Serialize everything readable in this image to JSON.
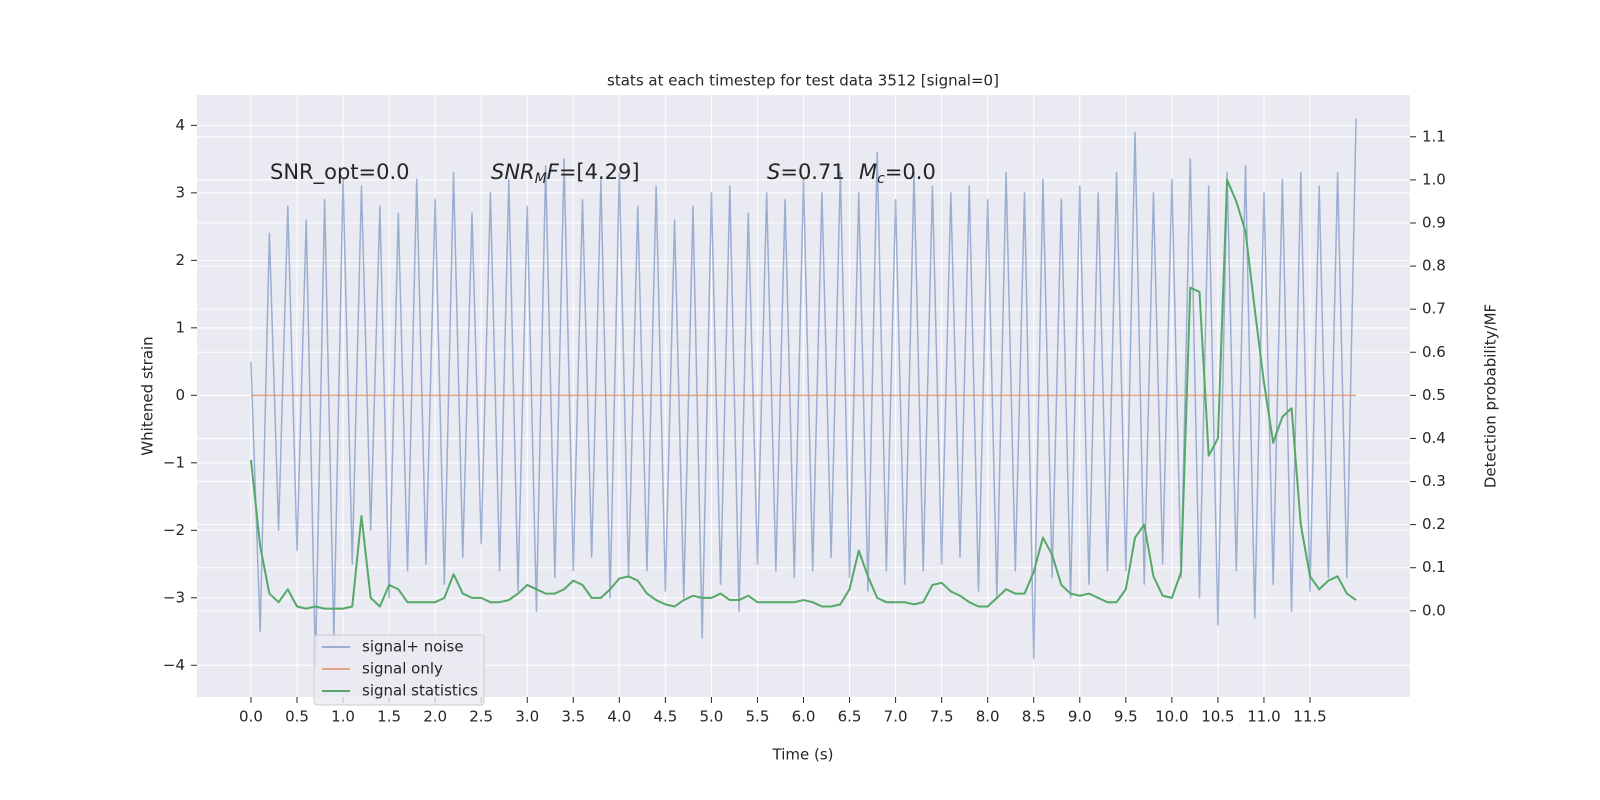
{
  "chart_data": {
    "type": "line",
    "title": "stats at each timestep for test data 3512 [signal=0]",
    "xlabel": "Time (s)",
    "ylabel": "Whitened strain",
    "y2label": "Detection probability/MF",
    "grid": true,
    "legend": "lower left",
    "xlim": [
      -0.586,
      12.586
    ],
    "ylim": [
      -4.47,
      4.45
    ],
    "y2lim": [
      -0.2,
      1.197
    ],
    "xticks": [
      {
        "value": 0,
        "label": "0.0"
      },
      {
        "value": 0.5,
        "label": "0.5"
      },
      {
        "value": 1,
        "label": "1.0"
      },
      {
        "value": 1.5,
        "label": "1.5"
      },
      {
        "value": 2,
        "label": "2.0"
      },
      {
        "value": 2.5,
        "label": "2.5"
      },
      {
        "value": 3,
        "label": "3.0"
      },
      {
        "value": 3.5,
        "label": "3.5"
      },
      {
        "value": 4,
        "label": "4.0"
      },
      {
        "value": 4.5,
        "label": "4.5"
      },
      {
        "value": 5,
        "label": "5.0"
      },
      {
        "value": 5.5,
        "label": "5.5"
      },
      {
        "value": 6,
        "label": "6.0"
      },
      {
        "value": 6.5,
        "label": "6.5"
      },
      {
        "value": 7,
        "label": "7.0"
      },
      {
        "value": 7.5,
        "label": "7.5"
      },
      {
        "value": 8,
        "label": "8.0"
      },
      {
        "value": 8.5,
        "label": "8.5"
      },
      {
        "value": 9,
        "label": "9.0"
      },
      {
        "value": 9.5,
        "label": "9.5"
      },
      {
        "value": 10,
        "label": "10.0"
      },
      {
        "value": 10.5,
        "label": "10.5"
      },
      {
        "value": 11,
        "label": "11.0"
      },
      {
        "value": 11.5,
        "label": "11.5"
      }
    ],
    "yticks": [
      {
        "value": -4,
        "label": "−4"
      },
      {
        "value": -3,
        "label": "−3"
      },
      {
        "value": -2,
        "label": "−2"
      },
      {
        "value": -1,
        "label": "−1"
      },
      0,
      1,
      2,
      3,
      4
    ],
    "y2ticks": [
      {
        "value": 0,
        "label": "0.0"
      },
      {
        "value": 0.1,
        "label": "0.1"
      },
      {
        "value": 0.2,
        "label": "0.2"
      },
      {
        "value": 0.3,
        "label": "0.3"
      },
      {
        "value": 0.4,
        "label": "0.4"
      },
      {
        "value": 0.5,
        "label": "0.5"
      },
      {
        "value": 0.6,
        "label": "0.6"
      },
      {
        "value": 0.7,
        "label": "0.7"
      },
      {
        "value": 0.8,
        "label": "0.8"
      },
      {
        "value": 0.9,
        "label": "0.9"
      },
      {
        "value": 1,
        "label": "1.0"
      },
      {
        "value": 1.1,
        "label": "1.1"
      }
    ],
    "x": [
      0,
      0.1,
      0.2,
      0.3,
      0.4,
      0.5,
      0.6,
      0.7,
      0.8,
      0.9,
      1,
      1.1,
      1.2,
      1.3,
      1.4,
      1.5,
      1.6,
      1.7,
      1.8,
      1.9,
      2,
      2.1,
      2.2,
      2.3,
      2.4,
      2.5,
      2.6,
      2.7,
      2.8,
      2.9,
      3,
      3.1,
      3.2,
      3.3,
      3.4,
      3.5,
      3.6,
      3.7,
      3.8,
      3.9,
      4,
      4.1,
      4.2,
      4.3,
      4.4,
      4.5,
      4.6,
      4.7,
      4.8,
      4.9,
      5,
      5.1,
      5.2,
      5.3,
      5.4,
      5.5,
      5.6,
      5.7,
      5.8,
      5.9,
      6,
      6.1,
      6.2,
      6.3,
      6.4,
      6.5,
      6.6,
      6.7,
      6.8,
      6.9,
      7,
      7.1,
      7.2,
      7.3,
      7.4,
      7.5,
      7.6,
      7.7,
      7.8,
      7.9,
      8,
      8.1,
      8.2,
      8.3,
      8.4,
      8.5,
      8.6,
      8.7,
      8.8,
      8.9,
      9,
      9.1,
      9.2,
      9.3,
      9.4,
      9.5,
      9.6,
      9.7,
      9.8,
      9.9,
      10,
      10.1,
      10.2,
      10.3,
      10.4,
      10.5,
      10.6,
      10.7,
      10.8,
      10.9,
      11,
      11.1,
      11.2,
      11.3,
      11.4,
      11.5,
      11.6,
      11.7,
      11.8,
      11.9,
      12
    ],
    "series": [
      {
        "name": "signal+ noise",
        "color": "#4c72b0",
        "opacity": 0.5,
        "values": [
          0.5,
          -3.5,
          2.4,
          -2.0,
          2.8,
          -2.3,
          2.6,
          -4.0,
          2.9,
          -3.6,
          3.2,
          -2.5,
          3.1,
          -2.0,
          2.8,
          -3.0,
          2.7,
          -2.6,
          3.2,
          -2.5,
          2.9,
          -2.8,
          3.3,
          -2.4,
          2.7,
          -2.2,
          3.0,
          -2.6,
          3.2,
          -2.9,
          2.8,
          -3.2,
          3.4,
          -2.7,
          3.5,
          -2.6,
          2.9,
          -2.4,
          3.2,
          -3.0,
          3.3,
          -2.7,
          2.8,
          -2.6,
          3.1,
          -2.9,
          2.6,
          -3.0,
          2.8,
          -3.6,
          3.0,
          -2.8,
          3.1,
          -3.2,
          2.7,
          -2.5,
          3.0,
          -2.6,
          2.9,
          -2.7,
          3.2,
          -2.6,
          3.0,
          -2.4,
          3.3,
          -2.7,
          3.0,
          -2.9,
          3.6,
          -2.6,
          2.9,
          -2.8,
          3.3,
          -2.6,
          3.1,
          -2.5,
          3.0,
          -2.4,
          3.1,
          -2.9,
          2.9,
          -3.0,
          3.3,
          -2.6,
          3.0,
          -3.9,
          3.2,
          -2.7,
          2.9,
          -3.0,
          3.1,
          -2.8,
          3.0,
          -2.6,
          3.3,
          -2.6,
          3.9,
          -2.8,
          3.0,
          -2.5,
          3.2,
          -2.7,
          3.5,
          -3.0,
          3.1,
          -3.4,
          3.3,
          -2.6,
          3.4,
          -3.3,
          3.0,
          -2.8,
          3.2,
          -3.2,
          3.3,
          -2.9,
          3.1,
          -2.7,
          3.3,
          -2.7,
          4.1
        ]
      },
      {
        "name": "signal only",
        "color": "#dd8452",
        "opacity": 0.7,
        "x": [
          0,
          12
        ],
        "values": [
          0,
          0
        ]
      },
      {
        "name": "signal statistics",
        "color": "#55a868",
        "opacity": 1,
        "axis": "y2",
        "values": [
          0.35,
          0.15,
          0.04,
          0.02,
          0.05,
          0.01,
          0.005,
          0.01,
          0.005,
          0.005,
          0.005,
          0.01,
          0.22,
          0.03,
          0.01,
          0.06,
          0.05,
          0.02,
          0.02,
          0.02,
          0.02,
          0.03,
          0.085,
          0.04,
          0.03,
          0.03,
          0.02,
          0.02,
          0.025,
          0.04,
          0.06,
          0.05,
          0.04,
          0.04,
          0.05,
          0.07,
          0.06,
          0.03,
          0.03,
          0.05,
          0.075,
          0.08,
          0.07,
          0.04,
          0.025,
          0.015,
          0.01,
          0.025,
          0.035,
          0.03,
          0.03,
          0.04,
          0.025,
          0.025,
          0.035,
          0.02,
          0.02,
          0.02,
          0.02,
          0.02,
          0.025,
          0.02,
          0.01,
          0.01,
          0.015,
          0.05,
          0.14,
          0.08,
          0.03,
          0.02,
          0.02,
          0.02,
          0.015,
          0.02,
          0.06,
          0.065,
          0.045,
          0.035,
          0.02,
          0.01,
          0.01,
          0.03,
          0.05,
          0.04,
          0.04,
          0.09,
          0.17,
          0.13,
          0.06,
          0.04,
          0.035,
          0.04,
          0.03,
          0.02,
          0.02,
          0.05,
          0.17,
          0.2,
          0.08,
          0.035,
          0.03,
          0.09,
          0.75,
          0.74,
          0.36,
          0.4,
          1.0,
          0.95,
          0.88,
          0.7,
          0.53,
          0.39,
          0.45,
          0.47,
          0.2,
          0.08,
          0.05,
          0.07,
          0.08,
          0.04,
          0.025
        ]
      }
    ],
    "annotations": [
      {
        "parts": [
          {
            "text": "SNR_opt=0.0"
          }
        ]
      },
      {
        "parts": [
          {
            "text": "SNR",
            "italic": true
          },
          {
            "text": "M",
            "italic": true,
            "sub": true
          },
          {
            "text": "F",
            "italic": true
          },
          {
            "text": "=[4.29]"
          }
        ]
      },
      {
        "parts": [
          {
            "text": "S",
            "italic": true
          },
          {
            "text": "=0.71"
          }
        ]
      },
      {
        "parts": [
          {
            "text": "M",
            "italic": true
          },
          {
            "text": "c",
            "italic": true,
            "sub": true
          },
          {
            "text": "=0.0"
          }
        ]
      }
    ]
  }
}
